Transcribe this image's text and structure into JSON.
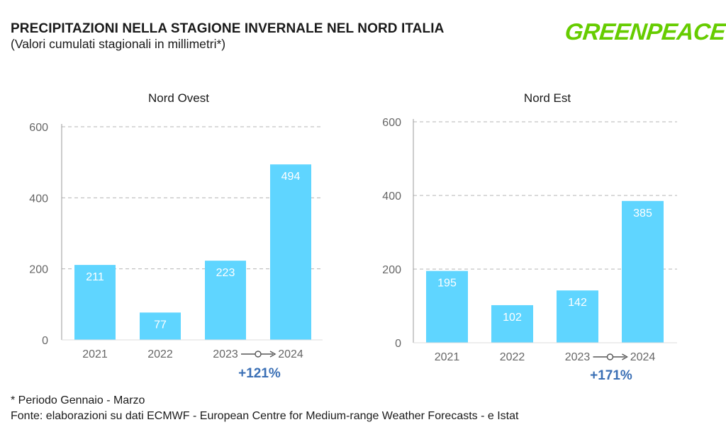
{
  "header": {
    "title": "PRECIPITAZIONI NELLA STAGIONE INVERNALE NEL NORD ITALIA",
    "subtitle": "(Valori cumulati stagionali in millimetri*)",
    "logo_text": "GREENPEACE"
  },
  "colors": {
    "bar": "#5fd5ff",
    "highlight": "#3a6fb5",
    "grid": "#b5b5b5",
    "axis_text": "#666666",
    "logo": "#66cc00"
  },
  "chart_data": [
    {
      "type": "bar",
      "title": "Nord Ovest",
      "categories": [
        "2021",
        "2022",
        "2023",
        "2024"
      ],
      "values": [
        211,
        77,
        223,
        494
      ],
      "ylim": [
        0,
        600
      ],
      "yticks": [
        "0",
        "200",
        "400",
        "600"
      ],
      "grid": true,
      "change_label": "+121%",
      "change_from": "2023",
      "change_to": "2024"
    },
    {
      "type": "bar",
      "title": "Nord Est",
      "categories": [
        "2021",
        "2022",
        "2023",
        "2024"
      ],
      "values": [
        195,
        102,
        142,
        385
      ],
      "ylim": [
        0,
        600
      ],
      "yticks": [
        "0",
        "200",
        "400",
        "600"
      ],
      "grid": true,
      "change_label": "+171%",
      "change_from": "2023",
      "change_to": "2024"
    }
  ],
  "footer": {
    "note": "* Periodo Gennaio - Marzo",
    "source": "Fonte: elaborazioni su dati ECMWF - European Centre for Medium-range Weather Forecasts - e Istat"
  }
}
